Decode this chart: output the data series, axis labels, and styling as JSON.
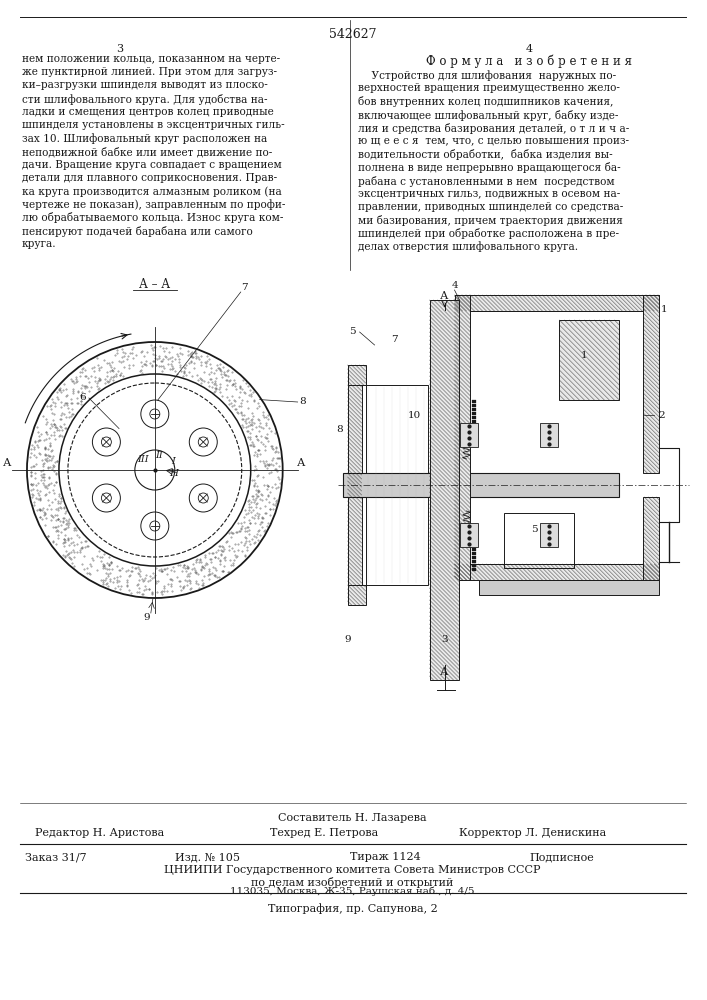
{
  "page_number_center": "542627",
  "page_col_left": "3",
  "page_col_right": "4",
  "text_left": [
    "нем положении кольца, показанном на черте-",
    "же пунктирной линией. При этом для загруз-",
    "ки–разгрузки шпинделя выводят из плоско-",
    "сти шлифовального круга. Для удобства на-",
    "ладки и смещения центров колец приводные",
    "шпинделя установлены в эксцентричных гиль-",
    "зах 10. Шлифовальный круг расположен на",
    "неподвижной бабке или имеет движение по-",
    "дачи. Вращение круга совпадает с вращением",
    "детали для плавного соприкосновения. Прав-",
    "ка круга производится алмазным роликом (на",
    "чертеже не показан), заправленным по профи-",
    "лю обрабатываемого кольца. Износ круга ком-",
    "пенсируют подачей барабана или самого",
    "круга."
  ],
  "formula_title": "Ф о р м у л а   и з о б р е т е н и я",
  "text_right": [
    "    Устройство для шлифования  наружных по-",
    "верхностей вращения преимущественно жело-",
    "бов внутренних колец подшипников качения,",
    "включающее шлифовальный круг, бабку изде-",
    "лия и средства базирования деталей, о т л и ч а-",
    "ю щ е е с я  тем, что, с целью повышения произ-",
    "водительности обработки,  бабка изделия вы-",
    "полнена в виде непрерывно вращающегося ба-",
    "рабана с установленными в нем  посредством",
    "эксцентричных гильз, подвижных в осевом на-",
    "правлении, приводных шпинделей со средства-",
    "ми базирования, причем траектория движения",
    "шпинделей при обработке расположена в пре-",
    "делах отверстия шлифовального круга."
  ],
  "footer_composer": "Составитель Н. Лазарева",
  "footer_editor": "Редактор Н. Аристова",
  "footer_techred": "Техред Е. Петрова",
  "footer_corrector": "Корректор Л. Денискина",
  "footer_order": "Заказ 31/7",
  "footer_issue": "Изд. № 105",
  "footer_circulation": "Тираж 1124",
  "footer_subscription": "Подписное",
  "footer_org1": "ЦНИИПИ Государственного комитета Совета Министров СССР",
  "footer_org2": "по делам изобретений и открытий",
  "footer_address": "113035, Москва, Ж-35, Раушская наб., д. 4/5",
  "footer_print": "Типография, пр. Сапунова, 2",
  "bg_color": "#ffffff",
  "text_color": "#1a1a1a",
  "line_color": "#1a1a1a"
}
